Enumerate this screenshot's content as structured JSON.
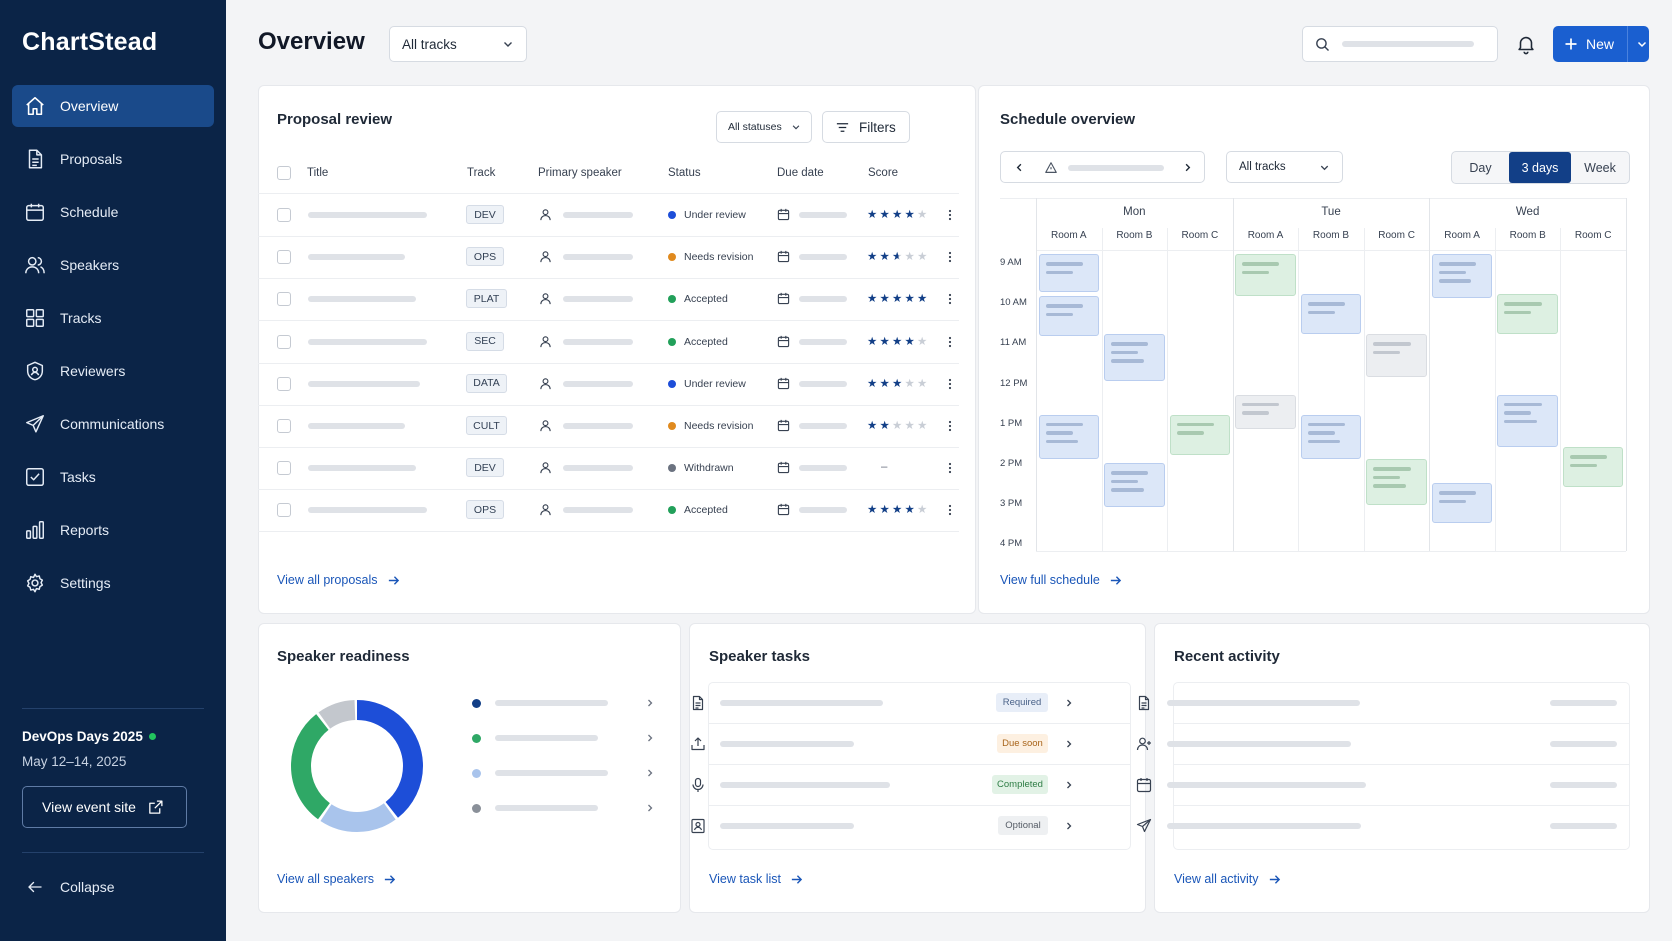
{
  "app": {
    "name": "ChartStead"
  },
  "sidebar": {
    "items": [
      {
        "label": "Overview",
        "icon": "home-icon",
        "active": true
      },
      {
        "label": "Proposals",
        "icon": "document-icon"
      },
      {
        "label": "Schedule",
        "icon": "calendar-icon"
      },
      {
        "label": "Speakers",
        "icon": "users-icon"
      },
      {
        "label": "Tracks",
        "icon": "grid-icon"
      },
      {
        "label": "Reviewers",
        "icon": "shield-icon"
      },
      {
        "label": "Communications",
        "icon": "send-icon"
      },
      {
        "label": "Tasks",
        "icon": "checkbox-icon"
      },
      {
        "label": "Reports",
        "icon": "bar-chart-icon"
      },
      {
        "label": "Settings",
        "icon": "gear-icon"
      }
    ],
    "event": {
      "name": "DevOps Days 2025",
      "status_color": "#22c55e",
      "dates": "May 12–14, 2025",
      "site_button": "View event site"
    },
    "collapse_label": "Collapse"
  },
  "header": {
    "title": "Overview",
    "track_filter": "All tracks",
    "new_button": "New"
  },
  "proposals": {
    "title": "Proposal review",
    "status_filter": "All statuses",
    "filters_button": "Filters",
    "columns": [
      "Title",
      "Track",
      "Primary speaker",
      "Status",
      "Due date",
      "Score"
    ],
    "rows": [
      {
        "track": "DEV",
        "status": "Under review",
        "status_color": "#1d4ed8",
        "score": 4
      },
      {
        "track": "OPS",
        "status": "Needs revision",
        "status_color": "#e08a1e",
        "score": 2.5
      },
      {
        "track": "PLAT",
        "status": "Accepted",
        "status_color": "#22a05a",
        "score": 5
      },
      {
        "track": "SEC",
        "status": "Accepted",
        "status_color": "#22a05a",
        "score": 4
      },
      {
        "track": "DATA",
        "status": "Under review",
        "status_color": "#1d4ed8",
        "score": 3
      },
      {
        "track": "CULT",
        "status": "Needs revision",
        "status_color": "#e08a1e",
        "score": 2
      },
      {
        "track": "DEV",
        "status": "Withdrawn",
        "status_color": "#6b7280",
        "score_text": "–"
      },
      {
        "track": "OPS",
        "status": "Accepted",
        "status_color": "#22a05a",
        "score": 4
      }
    ],
    "view_all": "View all proposals"
  },
  "schedule": {
    "title": "Schedule overview",
    "track_filter": "All tracks",
    "views": [
      "Day",
      "3 days",
      "Week"
    ],
    "selected_view": "3 days",
    "days": [
      {
        "name": "Mon",
        "rooms": [
          "Room A",
          "Room B",
          "Room C"
        ]
      },
      {
        "name": "Tue",
        "rooms": [
          "Room A",
          "Room B",
          "Room C"
        ]
      },
      {
        "name": "Wed",
        "rooms": [
          "Room A",
          "Room B",
          "Room C"
        ]
      }
    ],
    "times": [
      "9 AM",
      "10 AM",
      "11 AM",
      "12 PM",
      "1 PM",
      "2 PM",
      "3 PM",
      "4 PM"
    ],
    "view_all": "View full schedule"
  },
  "readiness": {
    "title": "Speaker readiness",
    "segments": [
      {
        "color": "#1d4ed8",
        "value": 0.4
      },
      {
        "color": "#a9c4ec",
        "value": 0.2
      },
      {
        "color": "#2fa866",
        "value": 0.3
      },
      {
        "color": "#c3c7cd",
        "value": 0.1
      }
    ],
    "legend_colors": [
      "#123f87",
      "#2fa866",
      "#a9c4ec",
      "#8a9099"
    ],
    "view_all": "View all speakers"
  },
  "tasks": {
    "title": "Speaker tasks",
    "items": [
      {
        "icon": "document-icon",
        "badge": "Required",
        "bg": "#e8eef8",
        "fg": "#4a6288"
      },
      {
        "icon": "upload-icon",
        "badge": "Due soon",
        "bg": "#fdf0e1",
        "fg": "#a8641a"
      },
      {
        "icon": "microphone-icon",
        "badge": "Completed",
        "bg": "#e2f2e6",
        "fg": "#2e7d45"
      },
      {
        "icon": "id-card-icon",
        "badge": "Optional",
        "bg": "#eef0f2",
        "fg": "#555c66"
      }
    ],
    "view_all": "View task list"
  },
  "activity": {
    "title": "Recent activity",
    "items": [
      {
        "icon": "document-icon"
      },
      {
        "icon": "user-plus-icon"
      },
      {
        "icon": "calendar-icon"
      },
      {
        "icon": "send-icon"
      }
    ],
    "view_all": "View all activity"
  }
}
